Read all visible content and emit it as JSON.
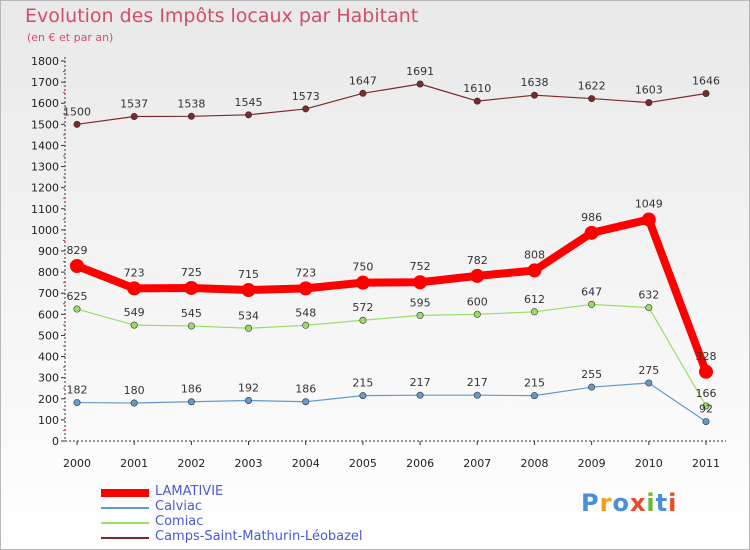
{
  "header": {
    "title": "Evolution des Impôts locaux par Habitant",
    "subtitle": "(en € et par an)"
  },
  "logo": {
    "text": "Proxiti",
    "colors": [
      "#4a90d9",
      "#f0a020",
      "#4a90d9",
      "#e84a2a",
      "#6ab82c",
      "#4a90d9",
      "#e84a2a"
    ]
  },
  "chart_data": {
    "type": "line",
    "title": "Evolution des Impôts locaux par Habitant",
    "subtitle": "(en € et par an)",
    "xlabel": "",
    "ylabel": "",
    "x": [
      "2000",
      "2001",
      "2002",
      "2003",
      "2004",
      "2005",
      "2006",
      "2007",
      "2008",
      "2009",
      "2010",
      "2011"
    ],
    "ylim": [
      0,
      1800
    ],
    "yticks": [
      0,
      100,
      200,
      300,
      400,
      500,
      600,
      700,
      800,
      900,
      1000,
      1100,
      1200,
      1300,
      1400,
      1500,
      1600,
      1700,
      1800
    ],
    "grid": false,
    "legend_position": "bottom-left",
    "series": [
      {
        "name": "LAMATIVIE",
        "color": "#ff0000",
        "bold": true,
        "values": [
          829,
          723,
          725,
          715,
          723,
          750,
          752,
          782,
          808,
          986,
          1049,
          328
        ]
      },
      {
        "name": "Calviac",
        "color": "#6699cc",
        "values": [
          182,
          180,
          186,
          192,
          186,
          215,
          217,
          217,
          215,
          255,
          275,
          92
        ]
      },
      {
        "name": "Comiac",
        "color": "#99dd66",
        "values": [
          625,
          549,
          545,
          534,
          548,
          572,
          595,
          600,
          612,
          647,
          632,
          166
        ]
      },
      {
        "name": "Camps-Saint-Mathurin-Léobazel",
        "color": "#7a2a2a",
        "values": [
          1500,
          1537,
          1538,
          1545,
          1573,
          1647,
          1691,
          1610,
          1638,
          1622,
          1603,
          1646
        ]
      }
    ]
  }
}
